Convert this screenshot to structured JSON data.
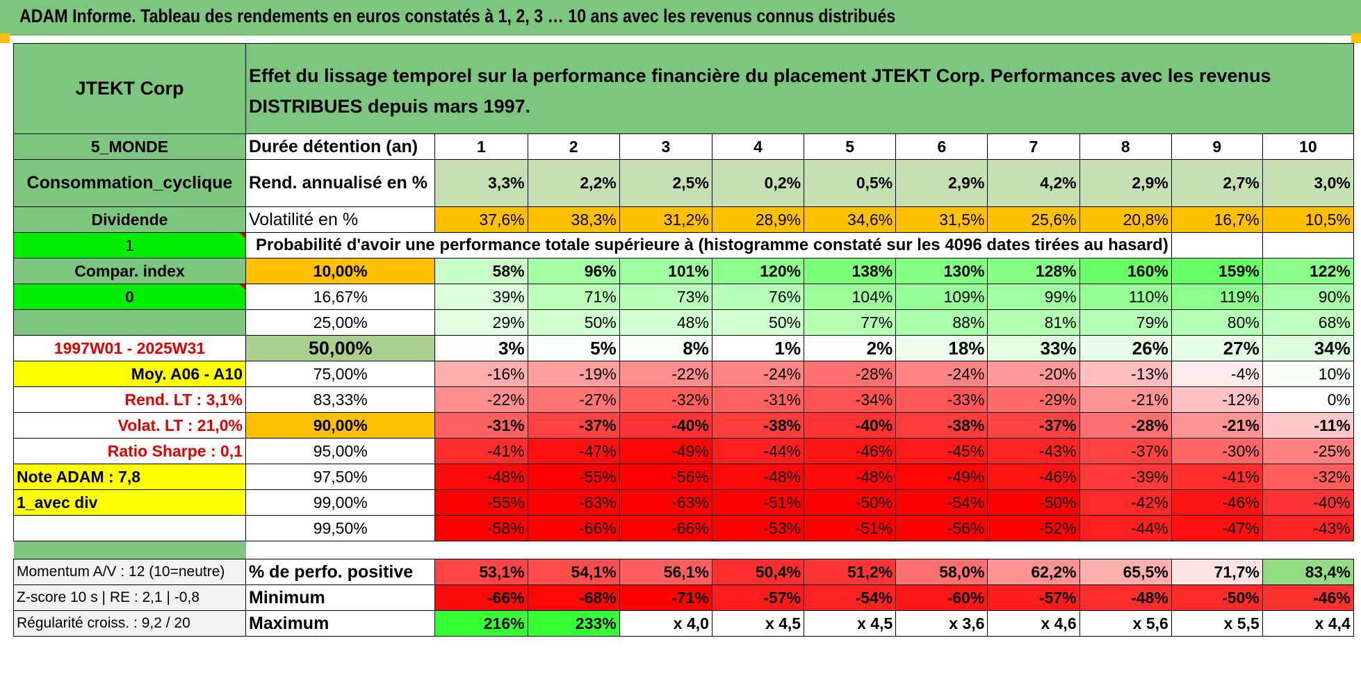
{
  "banner": {
    "title": "ADAM Informe. Tableau des rendements en euros constatés à 1, 2, 3 … 10 ans avec les revenus connus distribués"
  },
  "header": {
    "company": "JTEKT Corp",
    "description": "Effet du lissage temporel sur la performance financière du placement JTEKT Corp. Performances avec les revenus DISTRIBUES depuis mars 1997."
  },
  "side": {
    "region": "5_MONDE",
    "sector": "Consommation_cyclique",
    "dividend": "Dividende",
    "one": "1",
    "compar": "Compar. index",
    "zero": "0",
    "period": "1997W01 - 2025W31",
    "moy": "Moy. A06 - A10",
    "rend_lt": "Rend. LT :   3,1%",
    "volat_lt": "Volat. LT :   21,0%",
    "sharpe": "Ratio Sharpe :    0,1",
    "note": "Note ADAM : 7,8",
    "avec_div": "1_avec div",
    "momentum": "Momentum A/V : 12 (10=neutre)",
    "zscore": "Z-score 10 s | RE : 2,1 | -0,8",
    "regularite": "Régularité croiss. : 9,2 / 20"
  },
  "labels": {
    "duree": "Durée détention (an)",
    "rend": "Rend. annualisé en %",
    "vol": "Volatilité en %",
    "proba": "Probabilité d'avoir une performance totale supérieure à (histogramme constaté sur les 4096 dates tirées au hasard)",
    "perf_pos": "% de perfo. positive",
    "minimum": "Minimum",
    "maximum": "Maximum"
  },
  "years": [
    "1",
    "2",
    "3",
    "4",
    "5",
    "6",
    "7",
    "8",
    "9",
    "10"
  ],
  "rend": [
    "3,3%",
    "2,2%",
    "2,5%",
    "0,2%",
    "0,5%",
    "2,9%",
    "4,2%",
    "2,9%",
    "2,7%",
    "3,0%"
  ],
  "vol": [
    "37,6%",
    "38,3%",
    "31,2%",
    "28,9%",
    "34,6%",
    "31,5%",
    "25,6%",
    "20,8%",
    "16,7%",
    "10,5%"
  ],
  "prob_rows": [
    {
      "pct": "10,00%",
      "vals": [
        "58%",
        "96%",
        "101%",
        "120%",
        "138%",
        "130%",
        "128%",
        "160%",
        "159%",
        "122%"
      ]
    },
    {
      "pct": "16,67%",
      "vals": [
        "39%",
        "71%",
        "73%",
        "76%",
        "104%",
        "109%",
        "99%",
        "110%",
        "119%",
        "90%"
      ]
    },
    {
      "pct": "25,00%",
      "vals": [
        "29%",
        "50%",
        "48%",
        "50%",
        "77%",
        "88%",
        "81%",
        "79%",
        "80%",
        "68%"
      ]
    },
    {
      "pct": "50,00%",
      "vals": [
        "3%",
        "5%",
        "8%",
        "1%",
        "2%",
        "18%",
        "33%",
        "26%",
        "27%",
        "34%"
      ]
    },
    {
      "pct": "75,00%",
      "vals": [
        "-16%",
        "-19%",
        "-22%",
        "-24%",
        "-28%",
        "-24%",
        "-20%",
        "-13%",
        "-4%",
        "10%"
      ]
    },
    {
      "pct": "83,33%",
      "vals": [
        "-22%",
        "-27%",
        "-32%",
        "-31%",
        "-34%",
        "-33%",
        "-29%",
        "-21%",
        "-12%",
        "0%"
      ]
    },
    {
      "pct": "90,00%",
      "vals": [
        "-31%",
        "-37%",
        "-40%",
        "-38%",
        "-40%",
        "-38%",
        "-37%",
        "-28%",
        "-21%",
        "-11%"
      ]
    },
    {
      "pct": "95,00%",
      "vals": [
        "-41%",
        "-47%",
        "-49%",
        "-44%",
        "-46%",
        "-45%",
        "-43%",
        "-37%",
        "-30%",
        "-25%"
      ]
    },
    {
      "pct": "97,50%",
      "vals": [
        "-48%",
        "-55%",
        "-56%",
        "-48%",
        "-48%",
        "-49%",
        "-46%",
        "-39%",
        "-41%",
        "-32%"
      ]
    },
    {
      "pct": "99,00%",
      "vals": [
        "-55%",
        "-63%",
        "-63%",
        "-51%",
        "-50%",
        "-54%",
        "-50%",
        "-42%",
        "-46%",
        "-40%"
      ]
    },
    {
      "pct": "99,50%",
      "vals": [
        "-58%",
        "-66%",
        "-66%",
        "-53%",
        "-51%",
        "-56%",
        "-52%",
        "-44%",
        "-47%",
        "-43%"
      ]
    }
  ],
  "perf_pos": [
    "53,1%",
    "54,1%",
    "56,1%",
    "50,4%",
    "51,2%",
    "58,0%",
    "62,2%",
    "65,5%",
    "71,7%",
    "83,4%"
  ],
  "minimum": [
    "-66%",
    "-68%",
    "-71%",
    "-57%",
    "-54%",
    "-60%",
    "-57%",
    "-48%",
    "-50%",
    "-46%"
  ],
  "maximum": [
    "216%",
    "233%",
    "x 4,0",
    "x 4,5",
    "x 4,5",
    "x 3,6",
    "x 4,6",
    "x 5,6",
    "x 5,5",
    "x 4,4"
  ],
  "colors": {
    "header_green": "#7dc67f",
    "bright_green": "#00ee00",
    "yellow": "#ffff00",
    "orange": "#ffc000",
    "label_red": "#e00000"
  }
}
